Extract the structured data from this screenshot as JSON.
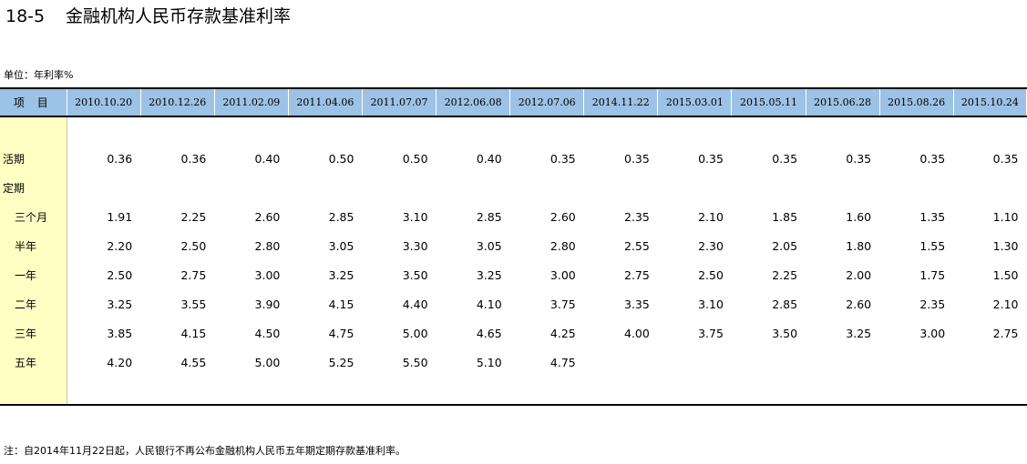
{
  "title": {
    "code": "18-5",
    "text": "金融机构人民币存款基准利率"
  },
  "unit": "单位：年利率%",
  "header": {
    "item_label": "项 目",
    "dates": [
      "2010.10.20",
      "2010.12.26",
      "2011.02.09",
      "2011.04.06",
      "2011.07.07",
      "2012.06.08",
      "2012.07.06",
      "2014.11.22",
      "2015.03.01",
      "2015.05.11",
      "2015.06.28",
      "2015.08.26",
      "2015.10.24"
    ]
  },
  "rows": [
    {
      "label": "活期",
      "values": [
        "0.36",
        "0.36",
        "0.40",
        "0.50",
        "0.50",
        "0.40",
        "0.35",
        "0.35",
        "0.35",
        "0.35",
        "0.35",
        "0.35",
        "0.35"
      ]
    },
    {
      "label": "定期",
      "values": [
        "",
        "",
        "",
        "",
        "",
        "",
        "",
        "",
        "",
        "",
        "",
        "",
        ""
      ]
    },
    {
      "label": "三个月",
      "values": [
        "1.91",
        "2.25",
        "2.60",
        "2.85",
        "3.10",
        "2.85",
        "2.60",
        "2.35",
        "2.10",
        "1.85",
        "1.60",
        "1.35",
        "1.10"
      ]
    },
    {
      "label": "半年",
      "values": [
        "2.20",
        "2.50",
        "2.80",
        "3.05",
        "3.30",
        "3.05",
        "2.80",
        "2.55",
        "2.30",
        "2.05",
        "1.80",
        "1.55",
        "1.30"
      ]
    },
    {
      "label": "一年",
      "values": [
        "2.50",
        "2.75",
        "3.00",
        "3.25",
        "3.50",
        "3.25",
        "3.00",
        "2.75",
        "2.50",
        "2.25",
        "2.00",
        "1.75",
        "1.50"
      ]
    },
    {
      "label": "二年",
      "values": [
        "3.25",
        "3.55",
        "3.90",
        "4.15",
        "4.40",
        "4.10",
        "3.75",
        "3.35",
        "3.10",
        "2.85",
        "2.60",
        "2.35",
        "2.10"
      ]
    },
    {
      "label": "三年",
      "values": [
        "3.85",
        "4.15",
        "4.50",
        "4.75",
        "5.00",
        "4.65",
        "4.25",
        "4.00",
        "3.75",
        "3.50",
        "3.25",
        "3.00",
        "2.75"
      ]
    },
    {
      "label": "五年",
      "values": [
        "4.20",
        "4.55",
        "5.00",
        "5.25",
        "5.50",
        "5.10",
        "4.75",
        "",
        "",
        "",
        "",
        "",
        ""
      ]
    }
  ],
  "note": "注：自2014年11月22日起，人民银行不再公布金融机构人民币五年期定期存款基准利率。"
}
